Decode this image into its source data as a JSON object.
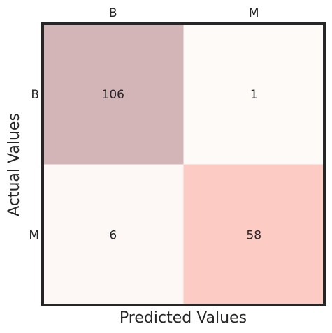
{
  "chart_data": {
    "type": "heatmap",
    "xlabel": "Predicted Values",
    "ylabel": "Actual Values",
    "x_categories": [
      "B",
      "M"
    ],
    "y_categories": [
      "B",
      "M"
    ],
    "values": [
      [
        106,
        1
      ],
      [
        6,
        58
      ]
    ],
    "cell_colors": [
      [
        "#d3b4b7",
        "#fefaf8"
      ],
      [
        "#fdf7f5",
        "#fbcbc4"
      ]
    ],
    "grid": false,
    "legend": "none"
  }
}
